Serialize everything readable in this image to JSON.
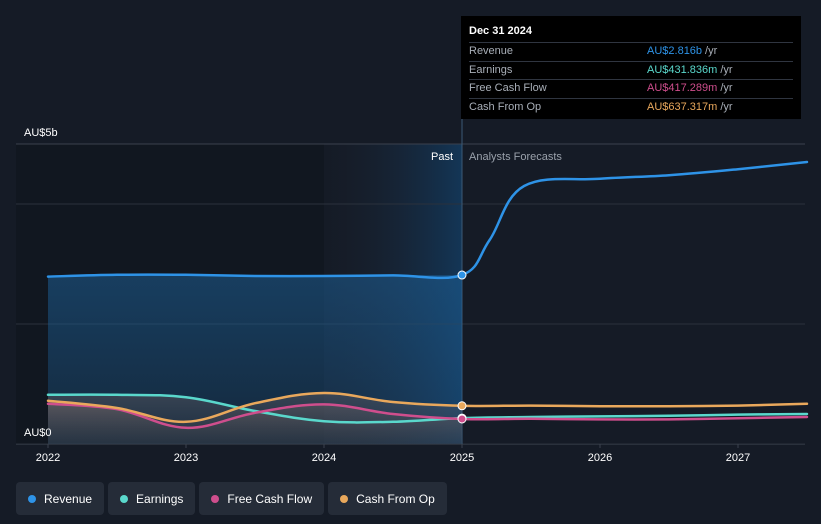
{
  "chart_data": {
    "type": "line",
    "y_top_label": "AU$5b",
    "y_bottom_label": "AU$0",
    "ylim": [
      0,
      5
    ],
    "xlim": [
      2022,
      2027.5
    ],
    "x_ticks": [
      "2022",
      "2023",
      "2024",
      "2025",
      "2026",
      "2027"
    ],
    "past_label": "Past",
    "forecast_label": "Analysts Forecasts",
    "divider_x": 2025,
    "series": [
      {
        "name": "Revenue",
        "color": "#2e93e7",
        "points": [
          [
            2022,
            2.79
          ],
          [
            2022.5,
            2.82
          ],
          [
            2023,
            2.82
          ],
          [
            2023.5,
            2.8
          ],
          [
            2024,
            2.8
          ],
          [
            2024.5,
            2.81
          ],
          [
            2025,
            2.816
          ],
          [
            2025.2,
            3.4
          ],
          [
            2025.45,
            4.3
          ],
          [
            2026,
            4.42
          ],
          [
            2026.5,
            4.48
          ],
          [
            2027,
            4.58
          ],
          [
            2027.5,
            4.7
          ]
        ]
      },
      {
        "name": "Earnings",
        "color": "#5ad8cc",
        "points": [
          [
            2022,
            0.82
          ],
          [
            2022.5,
            0.82
          ],
          [
            2023,
            0.78
          ],
          [
            2023.5,
            0.55
          ],
          [
            2024,
            0.38
          ],
          [
            2024.5,
            0.37
          ],
          [
            2025,
            0.432
          ],
          [
            2025.5,
            0.45
          ],
          [
            2026,
            0.46
          ],
          [
            2026.5,
            0.47
          ],
          [
            2027,
            0.49
          ],
          [
            2027.5,
            0.5
          ]
        ]
      },
      {
        "name": "Free Cash Flow",
        "color": "#cf4e8d",
        "points": [
          [
            2022,
            0.67
          ],
          [
            2022.5,
            0.58
          ],
          [
            2023,
            0.27
          ],
          [
            2023.5,
            0.52
          ],
          [
            2024,
            0.66
          ],
          [
            2024.5,
            0.5
          ],
          [
            2025,
            0.417
          ],
          [
            2025.5,
            0.42
          ],
          [
            2026,
            0.41
          ],
          [
            2026.5,
            0.41
          ],
          [
            2027,
            0.43
          ],
          [
            2027.5,
            0.45
          ]
        ]
      },
      {
        "name": "Cash From Op",
        "color": "#e9a85c",
        "points": [
          [
            2022,
            0.72
          ],
          [
            2022.5,
            0.6
          ],
          [
            2023,
            0.37
          ],
          [
            2023.5,
            0.68
          ],
          [
            2024,
            0.85
          ],
          [
            2024.5,
            0.7
          ],
          [
            2025,
            0.637
          ],
          [
            2025.5,
            0.64
          ],
          [
            2026,
            0.63
          ],
          [
            2026.5,
            0.63
          ],
          [
            2027,
            0.64
          ],
          [
            2027.5,
            0.67
          ]
        ]
      }
    ]
  },
  "tooltip": {
    "date": "Dec 31 2024",
    "rows": [
      {
        "label": "Revenue",
        "value": "AU$2.816b",
        "unit": "/yr",
        "color": "#2e93e7"
      },
      {
        "label": "Earnings",
        "value": "AU$431.836m",
        "unit": "/yr",
        "color": "#5ad8cc"
      },
      {
        "label": "Free Cash Flow",
        "value": "AU$417.289m",
        "unit": "/yr",
        "color": "#cf4e8d"
      },
      {
        "label": "Cash From Op",
        "value": "AU$637.317m",
        "unit": "/yr",
        "color": "#e9a85c"
      }
    ]
  },
  "legend": [
    {
      "label": "Revenue",
      "color": "#2e93e7"
    },
    {
      "label": "Earnings",
      "color": "#5ad8cc"
    },
    {
      "label": "Free Cash Flow",
      "color": "#cf4e8d"
    },
    {
      "label": "Cash From Op",
      "color": "#e9a85c"
    }
  ]
}
